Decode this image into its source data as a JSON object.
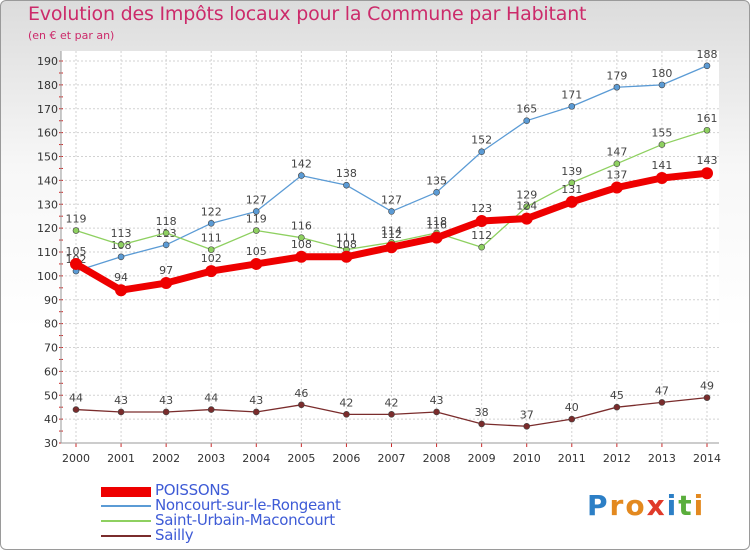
{
  "title": "Evolution des Impôts locaux pour la Commune par Habitant",
  "subtitle": "(en € et par an)",
  "brand": {
    "letters": [
      "P",
      "r",
      "o",
      "x",
      "i",
      "t",
      "i"
    ],
    "colors": [
      "#2c7fc6",
      "#e3891f",
      "#e3891f",
      "#e03a2a",
      "#2c7fc6",
      "#5aae3c",
      "#e3891f"
    ]
  },
  "chart_data": {
    "type": "line",
    "x": [
      "2000",
      "2001",
      "2002",
      "2003",
      "2004",
      "2005",
      "2006",
      "2007",
      "2008",
      "2009",
      "2010",
      "2011",
      "2012",
      "2013",
      "2014"
    ],
    "ylim": [
      30,
      190
    ],
    "yticks": [
      "30",
      "40",
      "50",
      "60",
      "70",
      "80",
      "90",
      "100",
      "110",
      "120",
      "130",
      "140",
      "150",
      "160",
      "170",
      "180",
      "190"
    ],
    "grid": true,
    "legend_position": "bottom-left",
    "series": [
      {
        "name": "POISSONS",
        "color": "#ee0000",
        "values": [
          105,
          94,
          97,
          102,
          105,
          108,
          108,
          112,
          116,
          123,
          124,
          131,
          137,
          141,
          143
        ]
      },
      {
        "name": "Noncourt-sur-le-Rongeant",
        "color": "#5b9bd5",
        "values": [
          102,
          108,
          113,
          122,
          127,
          142,
          138,
          127,
          135,
          152,
          165,
          171,
          179,
          180,
          188
        ]
      },
      {
        "name": "Saint-Urbain-Maconcourt",
        "color": "#8ed060",
        "values": [
          119,
          113,
          118,
          111,
          119,
          116,
          111,
          114,
          118,
          112,
          129,
          139,
          147,
          155,
          161
        ]
      },
      {
        "name": "Sailly",
        "color": "#7a2c2c",
        "values": [
          44,
          43,
          43,
          44,
          43,
          46,
          42,
          42,
          43,
          38,
          37,
          40,
          45,
          47,
          49
        ]
      }
    ]
  }
}
